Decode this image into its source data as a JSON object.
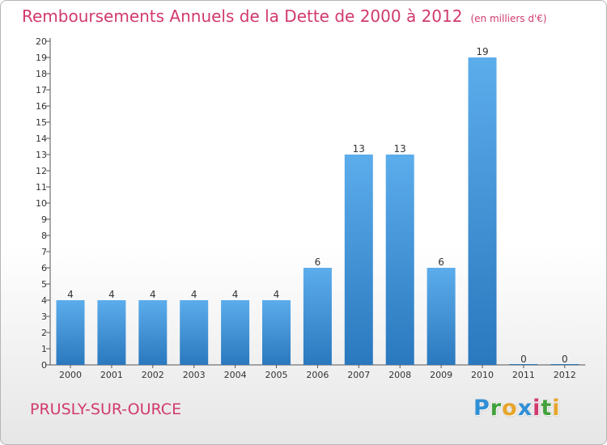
{
  "title": "Remboursements Annuels de la Dette de 2000 à 2012",
  "unit": "(en milliers d'€)",
  "location": "PRUSLY-SUR-OURCE",
  "brand": {
    "letters": [
      {
        "char": "P",
        "color": "#2f8fd6"
      },
      {
        "char": "r",
        "color": "#43a23a"
      },
      {
        "char": "o",
        "color": "#e7a52a"
      },
      {
        "char": "x",
        "color": "#2f8fd6"
      },
      {
        "char": "i",
        "color": "#d13a6e"
      },
      {
        "char": "t",
        "color": "#43a23a"
      },
      {
        "char": "i",
        "color": "#e7a52a"
      }
    ]
  },
  "colors": {
    "accent": "#d13a6e",
    "bar_top": "#5cadec",
    "bar_bottom": "#2a78be"
  },
  "chart_data": {
    "type": "bar",
    "categories": [
      "2000",
      "2001",
      "2002",
      "2003",
      "2004",
      "2005",
      "2006",
      "2007",
      "2008",
      "2009",
      "2010",
      "2011",
      "2012"
    ],
    "values": [
      4,
      4,
      4,
      4,
      4,
      4,
      6,
      13,
      13,
      6,
      19,
      0,
      0
    ],
    "data_labels": [
      "4",
      "4",
      "4",
      "4",
      "4",
      "4",
      "6",
      "13",
      "13",
      "6",
      "19",
      "0",
      "0"
    ],
    "y_ticks": [
      0,
      1,
      2,
      3,
      4,
      5,
      6,
      7,
      8,
      9,
      10,
      11,
      12,
      13,
      14,
      15,
      16,
      17,
      18,
      19,
      20
    ],
    "ylim": [
      0,
      20
    ],
    "grid": false,
    "legend": "none"
  }
}
